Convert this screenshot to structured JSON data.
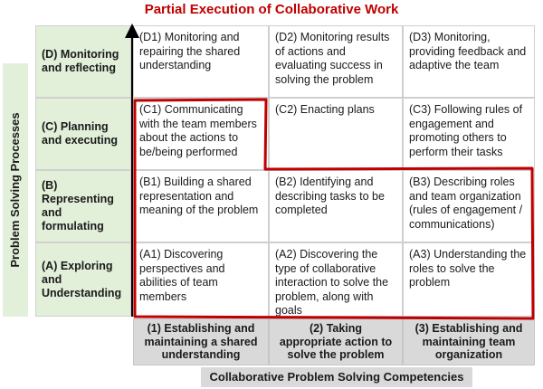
{
  "title": "Partial Execution of Collaborative Work",
  "y_axis_label": "Problem Solving Processes",
  "x_axis_label": "Collaborative Problem Solving Competencies",
  "rows": [
    {
      "label": "(D) Monitoring and reflecting"
    },
    {
      "label": "(C) Planning and executing"
    },
    {
      "label": "(B) Representing and formulating"
    },
    {
      "label": "(A) Exploring and Understanding"
    }
  ],
  "columns": [
    {
      "label": "(1) Establishing and maintaining a shared understanding"
    },
    {
      "label": "(2) Taking appropriate action to solve the problem"
    },
    {
      "label": "(3) Establishing and maintaining team organization"
    }
  ],
  "cells": [
    [
      "(D1) Monitoring and repairing the shared understanding",
      "(D2) Monitoring results of actions and evaluating success in solving the problem",
      "(D3) Monitoring, providing feedback and adaptive the team"
    ],
    [
      "(C1) Communicating with the team members about the actions to be/being performed",
      "(C2) Enacting plans",
      "(C3) Following rules of engagement and promoting others to perform their tasks"
    ],
    [
      "(B1) Building a shared representation and meaning of the problem",
      "(B2) Identifying and describing tasks to be completed",
      "(B3) Describing roles and team organization (rules of engagement / communications)"
    ],
    [
      "(A1) Discovering perspectives and abilities of team members",
      "(A2) Discovering the type of collaborative interaction to solve the problem, along with goals",
      "(A3) Understanding the roles to solve the problem"
    ]
  ],
  "colors": {
    "title": "#c00000",
    "row_header_fill": "#e2efd9",
    "column_header_fill": "#d9d9d9",
    "highlight_outline": "#c00000",
    "axis_arrow": "#000000"
  }
}
